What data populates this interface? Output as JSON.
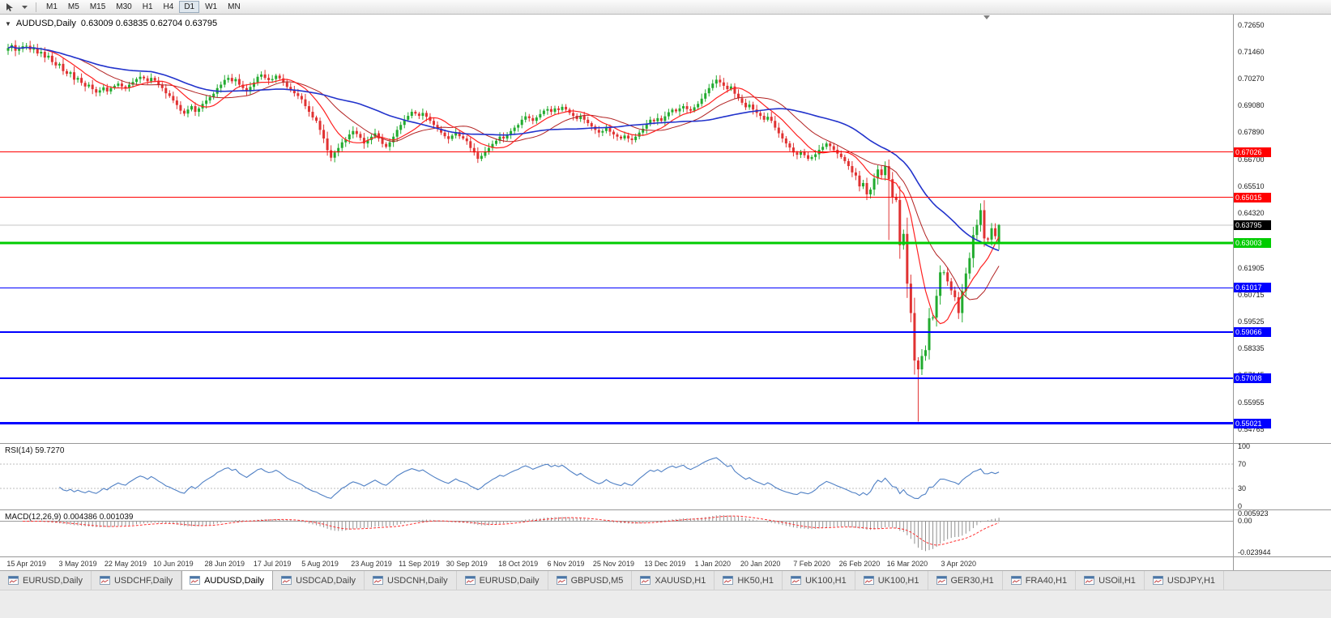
{
  "toolbar": {
    "timeframes": [
      "M1",
      "M5",
      "M15",
      "M30",
      "H1",
      "H4",
      "D1",
      "W1",
      "MN"
    ],
    "active_timeframe": "D1"
  },
  "chart_header": {
    "dropdown_icon": "▼",
    "symbol_title": "AUDUSD,Daily",
    "ohlc": "0.63009 0.63835 0.62704 0.63795"
  },
  "price_scale": {
    "labels": [
      "0.72650",
      "0.71460",
      "0.70270",
      "0.69080",
      "0.67890",
      "0.66700",
      "0.65510",
      "0.64320",
      "0.61905",
      "0.60715",
      "0.59525",
      "0.58335",
      "0.57145",
      "0.55955",
      "0.54765"
    ]
  },
  "horizontal_lines": [
    {
      "price": 0.67026,
      "label": "0.67026",
      "color": "#ff0000",
      "width": 1
    },
    {
      "price": 0.65015,
      "label": "0.65015",
      "color": "#ff0000",
      "width": 1
    },
    {
      "price": 0.63003,
      "label": "0.63003",
      "color": "#00cc00",
      "width": 3
    },
    {
      "price": 0.61017,
      "label": "0.61017",
      "color": "#0000ff",
      "width": 1
    },
    {
      "price": 0.59066,
      "label": "0.59066",
      "color": "#0000ff",
      "width": 2
    },
    {
      "price": 0.57008,
      "label": "0.57008",
      "color": "#0000ff",
      "width": 2
    },
    {
      "price": 0.55021,
      "label": "0.55021",
      "color": "#0000ff",
      "width": 3
    }
  ],
  "current_price": {
    "label": "0.63795",
    "price": 0.63795,
    "tag_color": "#000000"
  },
  "indicators": {
    "rsi": {
      "label": "RSI(14) 59.7270",
      "scale": [
        "100",
        "70",
        "30",
        "0"
      ],
      "levels": [
        70,
        30
      ]
    },
    "macd": {
      "label": "MACD(12,26,9) 0.004386 0.001039",
      "scale_top": "0.005923",
      "scale_zero": "0.00",
      "scale_bottom": "-0.023944"
    }
  },
  "time_axis": [
    "15 Apr 2019",
    "3 May 2019",
    "22 May 2019",
    "10 Jun 2019",
    "28 Jun 2019",
    "17 Jul 2019",
    "5 Aug 2019",
    "23 Aug 2019",
    "11 Sep 2019",
    "30 Sep 2019",
    "18 Oct 2019",
    "6 Nov 2019",
    "25 Nov 2019",
    "13 Dec 2019",
    "1 Jan 2020",
    "20 Jan 2020",
    "7 Feb 2020",
    "26 Feb 2020",
    "16 Mar 2020",
    "3 Apr 2020"
  ],
  "tabs": [
    {
      "label": "EURUSD,Daily",
      "active": false
    },
    {
      "label": "USDCHF,Daily",
      "active": false
    },
    {
      "label": "AUDUSD,Daily",
      "active": true
    },
    {
      "label": "USDCAD,Daily",
      "active": false
    },
    {
      "label": "USDCNH,Daily",
      "active": false
    },
    {
      "label": "EURUSD,Daily",
      "active": false
    },
    {
      "label": "GBPUSD,M5",
      "active": false
    },
    {
      "label": "XAUUSD,H1",
      "active": false
    },
    {
      "label": "HK50,H1",
      "active": false
    },
    {
      "label": "UK100,H1",
      "active": false
    },
    {
      "label": "UK100,H1",
      "active": false
    },
    {
      "label": "GER30,H1",
      "active": false
    },
    {
      "label": "FRA40,H1",
      "active": false
    },
    {
      "label": "USOil,H1",
      "active": false
    },
    {
      "label": "USDJPY,H1",
      "active": false
    }
  ],
  "chart_data": {
    "type": "candlestick",
    "symbol": "AUDUSD",
    "timeframe": "Daily",
    "ohlc_current": {
      "open": 0.63009,
      "high": 0.63835,
      "low": 0.62704,
      "close": 0.63795
    },
    "ylim": [
      0.5415,
      0.731
    ],
    "macd_ylim": [
      -0.0245,
      0.0065
    ],
    "first_open": 0.715,
    "closes": [
      0.7162,
      0.7175,
      0.715,
      0.7158,
      0.717,
      0.7172,
      0.7155,
      0.716,
      0.7138,
      0.7145,
      0.712,
      0.7128,
      0.71,
      0.7085,
      0.7092,
      0.706,
      0.7048,
      0.7055,
      0.7022,
      0.703,
      0.7008,
      0.6992,
      0.7,
      0.698,
      0.6965,
      0.6975,
      0.6988,
      0.697,
      0.6985,
      0.6995,
      0.7005,
      0.6992,
      0.6985,
      0.7,
      0.7012,
      0.7025,
      0.7035,
      0.7028,
      0.7015,
      0.703,
      0.7018,
      0.7,
      0.6985,
      0.6962,
      0.695,
      0.693,
      0.691,
      0.6885,
      0.6872,
      0.689,
      0.6905,
      0.688,
      0.6895,
      0.6915,
      0.693,
      0.6945,
      0.696,
      0.6985,
      0.7,
      0.7021,
      0.703,
      0.7015,
      0.7025,
      0.7,
      0.6985,
      0.697,
      0.699,
      0.701,
      0.7035,
      0.7045,
      0.703,
      0.702,
      0.7025,
      0.704,
      0.7028,
      0.701,
      0.699,
      0.6975,
      0.6962,
      0.695,
      0.6935,
      0.6905,
      0.688,
      0.6855,
      0.684,
      0.68,
      0.6762,
      0.671,
      0.6677,
      0.67,
      0.672,
      0.6745,
      0.6758,
      0.678,
      0.6795,
      0.6782,
      0.6765,
      0.674,
      0.6755,
      0.677,
      0.6785,
      0.6762,
      0.6738,
      0.6725,
      0.6745,
      0.677,
      0.68,
      0.6822,
      0.6845,
      0.6862,
      0.688,
      0.6872,
      0.6862,
      0.6875,
      0.6858,
      0.684,
      0.6822,
      0.6805,
      0.6788,
      0.6772,
      0.676,
      0.6775,
      0.679,
      0.6772,
      0.6762,
      0.675,
      0.672,
      0.67,
      0.6672,
      0.6685,
      0.6705,
      0.672,
      0.6738,
      0.6752,
      0.677,
      0.6762,
      0.6778,
      0.6795,
      0.681,
      0.6822,
      0.6845,
      0.686,
      0.6852,
      0.684,
      0.6855,
      0.687,
      0.6885,
      0.6892,
      0.688,
      0.6895,
      0.6888,
      0.6902,
      0.689,
      0.6875,
      0.6862,
      0.6848,
      0.6862,
      0.6845,
      0.683,
      0.6815,
      0.68,
      0.6788,
      0.6795,
      0.681,
      0.6792,
      0.678,
      0.677,
      0.6762,
      0.6775,
      0.6762,
      0.6755,
      0.677,
      0.6788,
      0.6805,
      0.6825,
      0.6845,
      0.6838,
      0.6852,
      0.684,
      0.686,
      0.6878,
      0.689,
      0.6882,
      0.6895,
      0.6905,
      0.6892,
      0.6885,
      0.69,
      0.6915,
      0.6938,
      0.6962,
      0.6985,
      0.7005,
      0.7022,
      0.701,
      0.6995,
      0.698,
      0.6992,
      0.696,
      0.694,
      0.692,
      0.69,
      0.6912,
      0.689,
      0.6875,
      0.6862,
      0.6845,
      0.6858,
      0.684,
      0.681,
      0.6785,
      0.6762,
      0.674,
      0.6722,
      0.67,
      0.669,
      0.6702,
      0.6688,
      0.6672,
      0.668,
      0.6692,
      0.6712,
      0.6725,
      0.674,
      0.6728,
      0.6712,
      0.6695,
      0.668,
      0.6662,
      0.664,
      0.6612,
      0.6598,
      0.655,
      0.6565,
      0.6515,
      0.6536,
      0.6585,
      0.6625,
      0.66,
      0.664,
      0.6582,
      0.6503,
      0.649,
      0.629,
      0.634,
      0.612,
      0.599,
      0.578,
      0.5741,
      0.58,
      0.5826,
      0.5967,
      0.597,
      0.6066,
      0.617,
      0.617,
      0.613,
      0.609,
      0.606,
      0.599,
      0.6087,
      0.6165,
      0.6233,
      0.6335,
      0.638,
      0.6445,
      0.632,
      0.6315,
      0.6365,
      0.633,
      0.63795
    ],
    "wick_lows": {
      "240": 0.6313,
      "243": 0.623,
      "248": 0.551
    },
    "label_indices": [
      5,
      19,
      32,
      45,
      59,
      72,
      85,
      99,
      112,
      125,
      139,
      152,
      165,
      179,
      192,
      205,
      219,
      232,
      245,
      259
    ],
    "colors": {
      "up": "#22ab2f",
      "down": "#e03232",
      "ma_fast": "#ff2020",
      "ma_mid": "#b22222",
      "ma_slow": "#2233cc",
      "rsi": "#4e7fc4",
      "macd_hist": "#909090",
      "macd_signal": "#ff3030",
      "hline_blue": "#0000ff",
      "hline_red": "#ff0000",
      "hline_green": "#00cc00"
    }
  }
}
